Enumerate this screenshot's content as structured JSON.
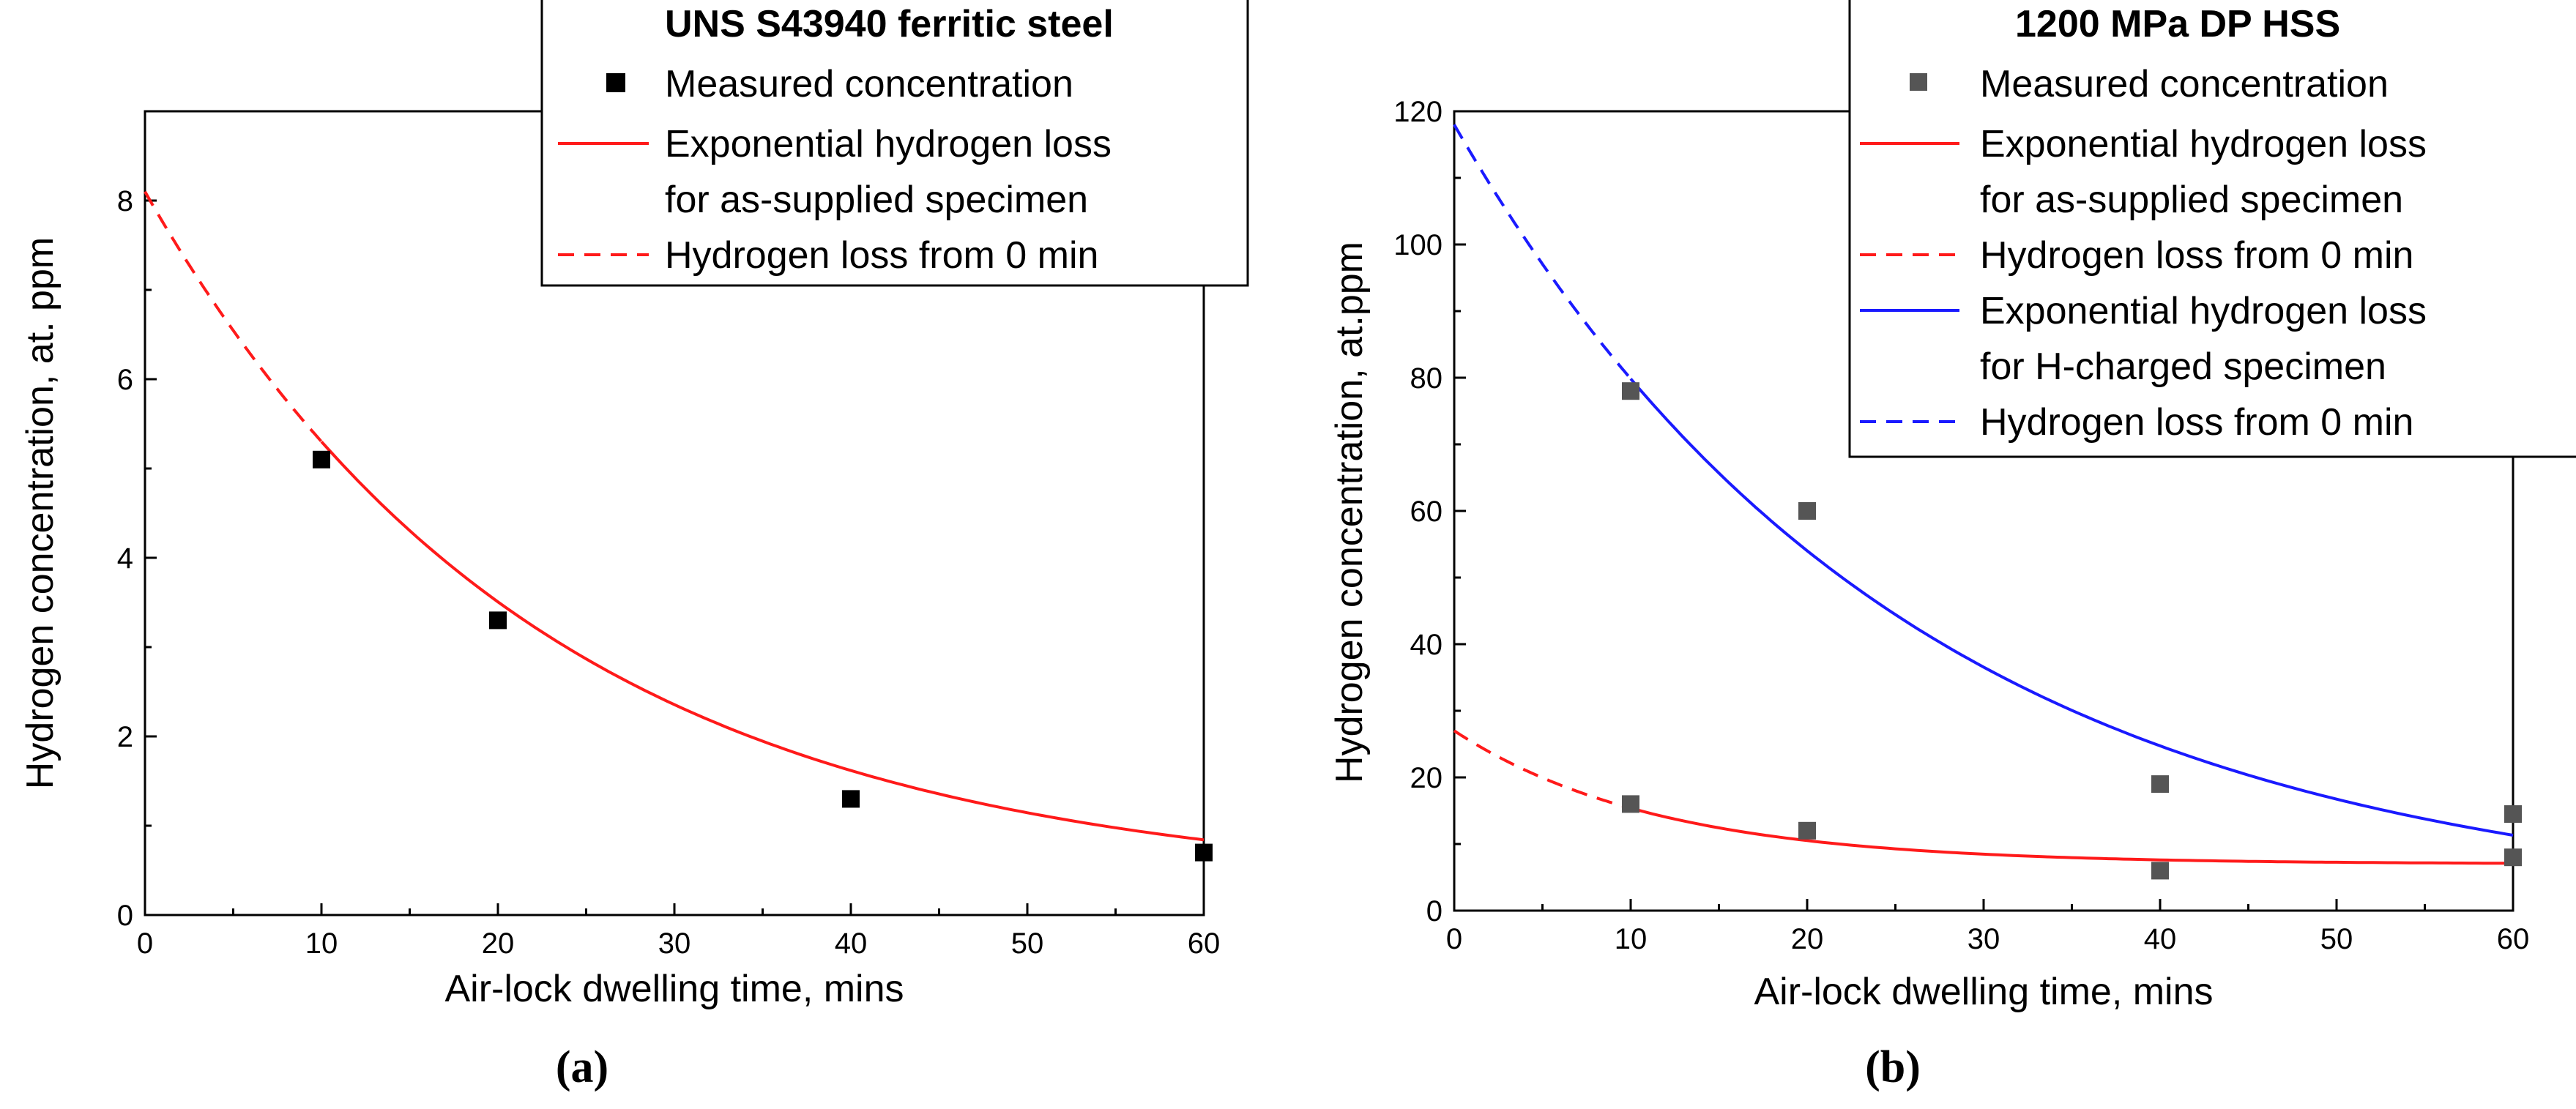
{
  "chart_data": [
    {
      "panel": "(a)",
      "type": "scatter",
      "xlabel": "Air-lock dwelling time, mins",
      "ylabel": "Hydrogen concentration, at. ppm",
      "xlim": [
        0,
        60
      ],
      "ylim": [
        0,
        9
      ],
      "xticks": [
        0,
        10,
        20,
        30,
        40,
        50,
        60
      ],
      "yticks": [
        0,
        2,
        4,
        6,
        8
      ],
      "legend": {
        "title": "UNS S43940 ferritic steel",
        "placement": "top-right",
        "entries": [
          {
            "label": "Measured concentration",
            "kind": "marker",
            "color": "#000000"
          },
          {
            "label": "Exponential hydrogen loss",
            "label2": "for as-supplied specimen",
            "kind": "line",
            "color": "#ff1a1a"
          },
          {
            "label": "Hydrogen loss from 0 min",
            "kind": "dash",
            "color": "#ff1a1a"
          }
        ]
      },
      "points": [
        {
          "series": "Measured concentration",
          "x": [
            10,
            20,
            40,
            60
          ],
          "y": [
            5.1,
            3.3,
            1.3,
            0.7
          ],
          "color": "#000000"
        }
      ],
      "curves": [
        {
          "name": "Exponential hydrogen loss for as-supplied specimen",
          "color": "#ff1a1a",
          "model": {
            "y0": 0.3,
            "A": 7.8,
            "tau": 22.5
          },
          "from": 10,
          "to": 60,
          "dashed_from": 0
        }
      ]
    },
    {
      "panel": "(b)",
      "type": "scatter",
      "xlabel": "Air-lock dwelling time, mins",
      "ylabel": "Hydrogen concentration, at.ppm",
      "xlim": [
        0,
        60
      ],
      "ylim": [
        0,
        120
      ],
      "xticks": [
        0,
        10,
        20,
        30,
        40,
        50,
        60
      ],
      "yticks": [
        0,
        20,
        40,
        60,
        80,
        100,
        120
      ],
      "legend": {
        "title": "1200 MPa DP HSS",
        "placement": "top-right",
        "entries": [
          {
            "label": "Measured concentration",
            "kind": "marker",
            "color": "#555555"
          },
          {
            "label": "Exponential hydrogen loss",
            "label2": "for as-supplied specimen",
            "kind": "line",
            "color": "#ff1a1a"
          },
          {
            "label": "Hydrogen loss from 0 min",
            "kind": "dash",
            "color": "#ff1a1a"
          },
          {
            "label": "Exponential  hydrogen loss",
            "label2": "for H-charged specimen",
            "kind": "line",
            "color": "#1a1aff"
          },
          {
            "label": "Hydrogen loss from 0 min",
            "kind": "dash",
            "color": "#1a1aff"
          }
        ]
      },
      "points": [
        {
          "series": "Measured concentration",
          "x": [
            10,
            20,
            40,
            60,
            10,
            20,
            40,
            60
          ],
          "y": [
            78,
            60,
            19,
            14.5,
            16,
            12,
            6,
            8
          ],
          "color": "#555555"
        }
      ],
      "curves": [
        {
          "name": "Exponential hydrogen loss for H-charged specimen",
          "color": "#1a1aff",
          "model": {
            "y0": 0,
            "A": 118,
            "tau": 25.6
          },
          "from": 10,
          "to": 60,
          "dashed_from": 0
        },
        {
          "name": "Exponential hydrogen loss for as-supplied specimen",
          "color": "#ff1a1a",
          "model": {
            "y0": 7,
            "A": 20,
            "tau": 11.5
          },
          "from": 10,
          "to": 60,
          "dashed_from": 0
        }
      ]
    }
  ]
}
